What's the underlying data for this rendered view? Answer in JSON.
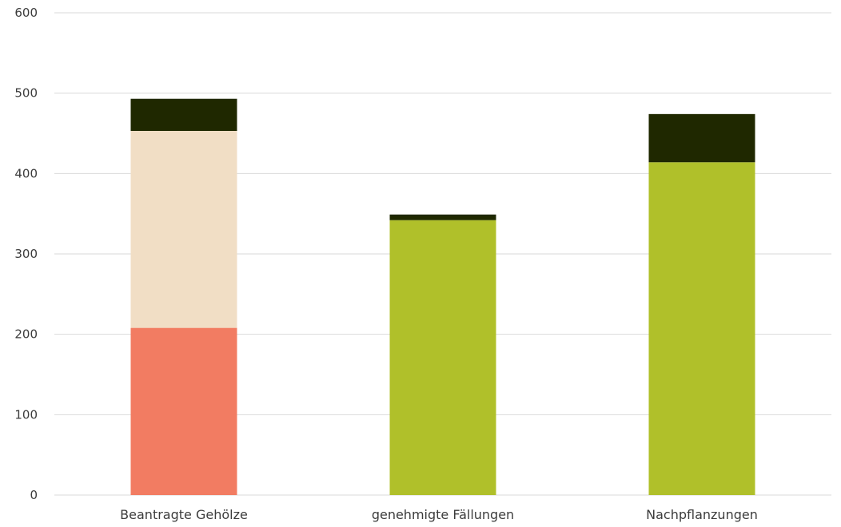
{
  "chart_data": {
    "type": "bar",
    "stacked": true,
    "categories": [
      "Beantragte Gehölze",
      "genehmigte Fällungen",
      "Nachpflanzungen"
    ],
    "series": [
      {
        "color": "#f27c62",
        "values": [
          208,
          0,
          0
        ]
      },
      {
        "color": "#f1dec5",
        "values": [
          245,
          0,
          0
        ]
      },
      {
        "color": "#b0c02a",
        "values": [
          0,
          342,
          414
        ]
      },
      {
        "color": "#1f2800",
        "values": [
          40,
          7,
          60
        ]
      }
    ],
    "yticks": [
      0,
      100,
      200,
      300,
      400,
      500,
      600
    ],
    "ylim": [
      0,
      600
    ],
    "grid": true,
    "title": "",
    "xlabel": "",
    "ylabel": ""
  }
}
